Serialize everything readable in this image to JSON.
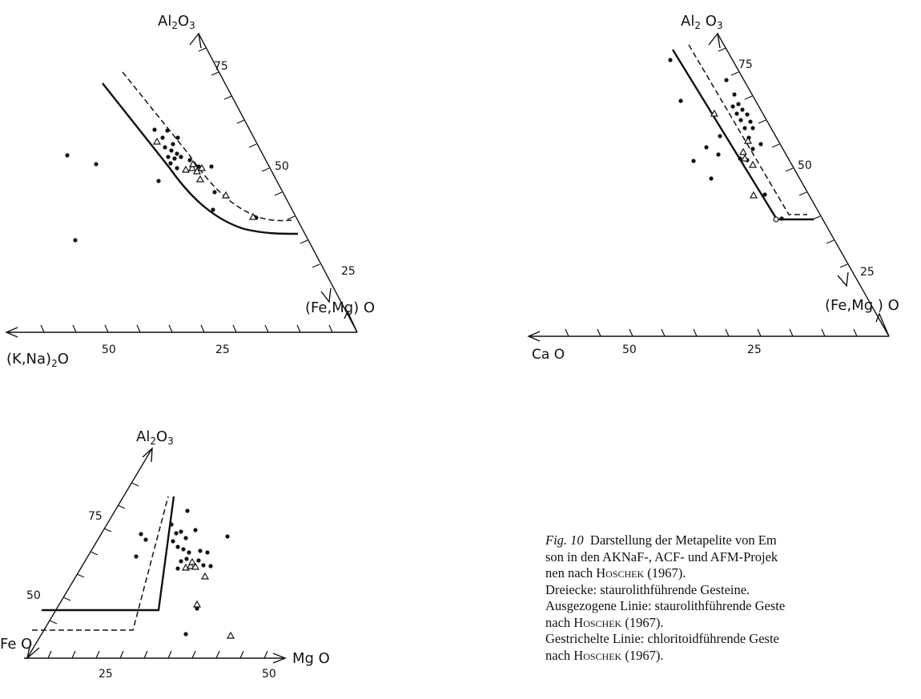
{
  "figure": {
    "akf": {
      "apex_label_main": "Al",
      "apex_label_sub1": "2",
      "apex_label_mid": "O",
      "apex_label_sub2": "3",
      "right_label": "(Fe,Mg) O",
      "left_label_main": "(K,Na)",
      "left_label_sub": "2",
      "left_label_end": "O",
      "right_ticks": [
        "75",
        "50",
        "25"
      ],
      "bottom_ticks": [
        "50",
        "25"
      ]
    },
    "acf": {
      "apex_label_main": "Al",
      "apex_label_sub1": "2",
      "apex_label_mid": " O",
      "apex_label_sub2": "3",
      "right_label": "(Fe,Mg ) O",
      "left_label": "Ca O",
      "right_ticks": [
        "75",
        "50",
        "25"
      ],
      "bottom_ticks": [
        "50",
        "25"
      ]
    },
    "afm": {
      "apex_label_main": "Al",
      "apex_label_sub1": "2",
      "apex_label_mid": "O",
      "apex_label_sub2": "3",
      "left_label": "Fe O",
      "right_label": "Mg O",
      "left_ticks": [
        "75",
        "50"
      ],
      "bottom_ticks": [
        "25",
        "50"
      ]
    }
  },
  "caption": {
    "fig_label": "Fig. 10",
    "line1": "Darstellung der Metapelite von Em",
    "line2": "son in den AKNaF-, ACF- und AFM-Projek",
    "line3_pre": "nen nach",
    "author": "Hoschek",
    "year": "(1967).",
    "line4": "Dreiecke: staurolithführende Gesteine.",
    "line5": "Ausgezogene Linie: staurolithführende Geste",
    "line6_pre": "nach",
    "line7": "Gestrichelte Linie: chloritoidführende Geste",
    "line8_pre": "nach"
  }
}
